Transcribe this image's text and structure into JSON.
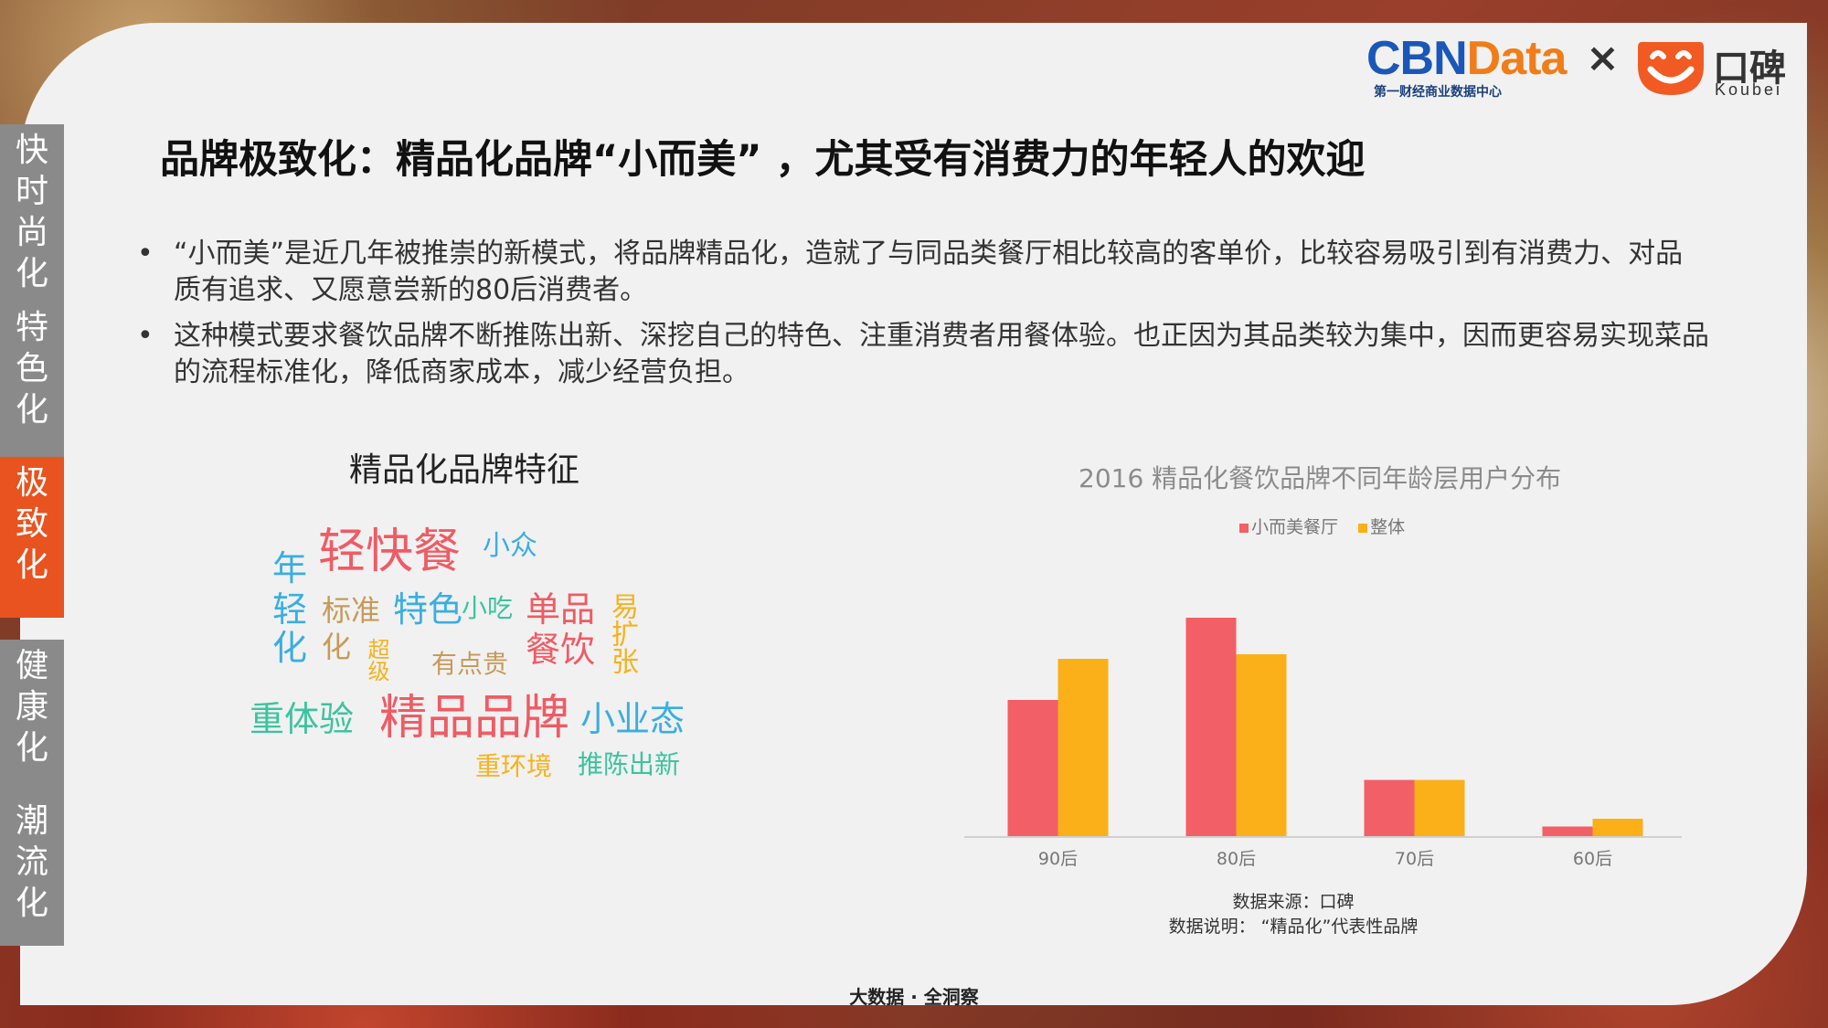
{
  "logos": {
    "cbn_main_a": "CBN",
    "cbn_main_b": "Data",
    "cbn_sub": "第一财经商业数据中心",
    "times": "×",
    "koubei_name": "口碑",
    "koubei_en": "Koubei"
  },
  "sidebar": [
    {
      "label": "快时尚化",
      "active": false
    },
    {
      "label": "特色化",
      "active": false
    },
    {
      "label": "极致化",
      "active": true
    },
    {
      "label": "健康化",
      "active": false
    },
    {
      "label": "潮流化",
      "active": false
    }
  ],
  "title": "品牌极致化：精品化品牌“小而美” ，尤其受有消费力的年轻人的欢迎",
  "bullets": [
    "“小而美”是近几年被推崇的新模式，将品牌精品化，造就了与同品类餐厅相比较高的客单价，比较容易吸引到有消费力、对品质有追求、又愿意尝新的80后消费者。",
    "这种模式要求餐饮品牌不断推陈出新、深挖自己的特色、注重消费者用餐体验。也正因为其品类较为集中，因而更容易实现菜品的流程标准化，降低商家成本，减少经营负担。"
  ],
  "wordcloud": {
    "title": "精品化品牌特征",
    "words": [
      {
        "text": "轻快餐",
        "color": "#ef5b64"
      },
      {
        "text": "小众",
        "color": "#3aaee0"
      },
      {
        "text": "年",
        "color": "#3aaee0"
      },
      {
        "text": "轻",
        "color": "#3aaee0"
      },
      {
        "text": "化",
        "color": "#3aaee0"
      },
      {
        "text": "标准",
        "color": "#c79a5a"
      },
      {
        "text": "化",
        "color": "#c79a5a"
      },
      {
        "text": "特色",
        "color": "#3aaee0"
      },
      {
        "text": "小吃",
        "color": "#3cc3a0"
      },
      {
        "text": "单品",
        "color": "#ef5b64"
      },
      {
        "text": "易扩张",
        "color": "#f5b21c"
      },
      {
        "text": "餐饮",
        "color": "#ef5b64"
      },
      {
        "text": "超级",
        "color": "#f5b21c"
      },
      {
        "text": "有点贵",
        "color": "#c79a5a"
      },
      {
        "text": "重体验",
        "color": "#3cc3a0"
      },
      {
        "text": "精品品牌",
        "color": "#ef5b64"
      },
      {
        "text": "小业态",
        "color": "#3aaee0"
      },
      {
        "text": "重环境",
        "color": "#f5b21c"
      },
      {
        "text": "推陈出新",
        "color": "#3cc3a0"
      }
    ]
  },
  "chart_data": {
    "type": "bar",
    "title": "2016 精品化餐饮品牌不同年龄层用户分布",
    "categories": [
      "90后",
      "80后",
      "70后",
      "60后"
    ],
    "series": [
      {
        "name": "小而美餐厅",
        "color": "#f25f66",
        "values": [
          30,
          48,
          12.5,
          2.3
        ]
      },
      {
        "name": "整体",
        "color": "#fbb019",
        "values": [
          39,
          40,
          12.5,
          4
        ]
      }
    ],
    "ylim": [
      0,
      50
    ],
    "legend": "top",
    "grid": false
  },
  "source": {
    "line1": "数据来源：口碑",
    "line2": "数据说明： “精品化”代表性品牌"
  },
  "footer": "大数据 · 全洞察"
}
